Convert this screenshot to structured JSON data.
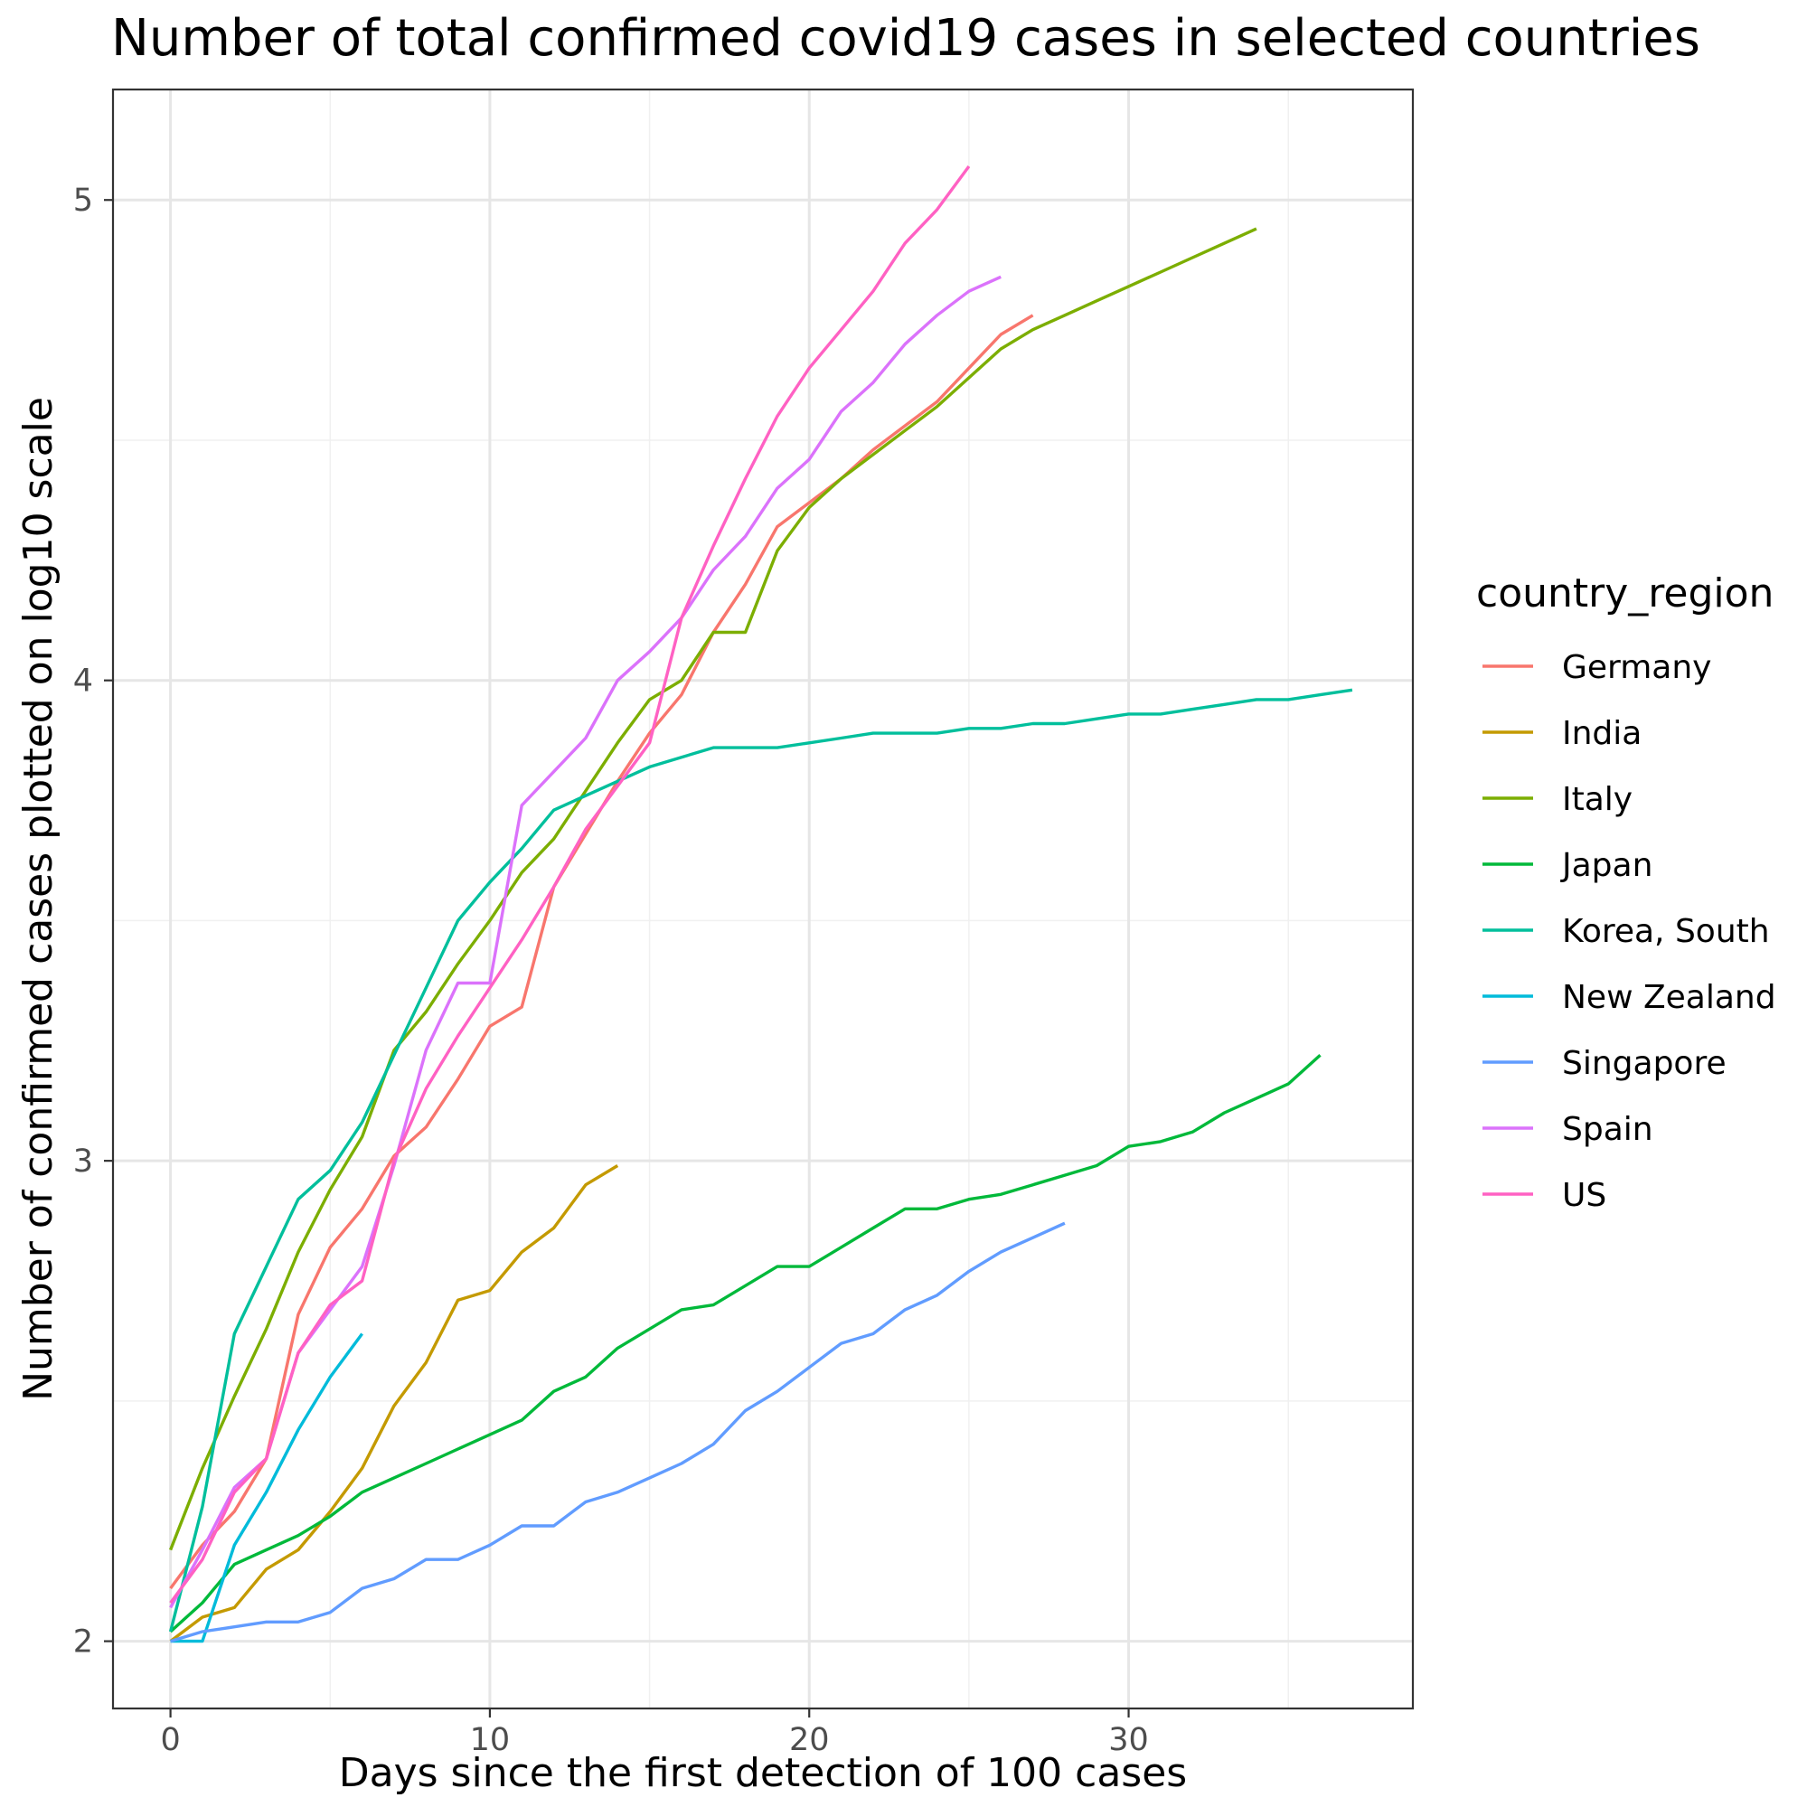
{
  "chart_data": {
    "type": "line",
    "title": "Number of total confirmed covid19 cases in selected countries",
    "xlabel": "Days since the first detection of 100 cases",
    "ylabel": "Number of confirmed cases plotted on log10 scale",
    "xlim": [
      -1.8,
      38.9
    ],
    "ylim": [
      1.86,
      5.23
    ],
    "x_ticks": [
      0,
      10,
      20,
      30
    ],
    "x_tick_labels": [
      "0",
      "10",
      "20",
      "30"
    ],
    "x_minor_ticks": [
      5,
      15,
      25,
      35
    ],
    "y_ticks": [
      2,
      3,
      4,
      5
    ],
    "y_tick_labels": [
      "2",
      "3",
      "4",
      "5"
    ],
    "y_minor_ticks": [
      2.5,
      3.5,
      4.5
    ],
    "grid": true,
    "legend": {
      "title": "country_region",
      "position": "right"
    },
    "series": [
      {
        "name": "Germany",
        "color": "#F8766D",
        "values": [
          2.11,
          2.2,
          2.27,
          2.38,
          2.68,
          2.82,
          2.9,
          3.01,
          3.07,
          3.17,
          3.28,
          3.32,
          3.57,
          3.68,
          3.79,
          3.89,
          3.97,
          4.1,
          4.2,
          4.32,
          4.37,
          4.42,
          4.48,
          4.53,
          4.58,
          4.65,
          4.72,
          4.76
        ]
      },
      {
        "name": "India",
        "color": "#C49A00",
        "values": [
          2.0,
          2.05,
          2.07,
          2.15,
          2.19,
          2.27,
          2.36,
          2.49,
          2.58,
          2.71,
          2.73,
          2.81,
          2.86,
          2.95,
          2.99
        ]
      },
      {
        "name": "Italy",
        "color": "#7CAE00",
        "values": [
          2.19,
          2.36,
          2.51,
          2.65,
          2.81,
          2.94,
          3.05,
          3.23,
          3.31,
          3.41,
          3.5,
          3.6,
          3.67,
          3.77,
          3.87,
          3.96,
          4.0,
          4.1,
          4.1,
          4.27,
          4.36,
          4.42,
          4.47,
          4.52,
          4.57,
          4.63,
          4.69,
          4.73,
          4.76,
          4.79,
          4.82,
          4.85,
          4.88,
          4.91,
          4.94
        ]
      },
      {
        "name": "Japan",
        "color": "#00B93A",
        "values": [
          2.02,
          2.08,
          2.16,
          2.19,
          2.22,
          2.26,
          2.31,
          2.34,
          2.37,
          2.4,
          2.43,
          2.46,
          2.52,
          2.55,
          2.61,
          2.65,
          2.69,
          2.7,
          2.74,
          2.78,
          2.78,
          2.82,
          2.86,
          2.9,
          2.9,
          2.92,
          2.93,
          2.95,
          2.97,
          2.99,
          3.03,
          3.04,
          3.06,
          3.1,
          3.13,
          3.16,
          3.22
        ]
      },
      {
        "name": "Korea, South",
        "color": "#00BF9C",
        "values": [
          2.02,
          2.28,
          2.64,
          2.78,
          2.92,
          2.98,
          3.08,
          3.22,
          3.36,
          3.5,
          3.58,
          3.65,
          3.73,
          3.76,
          3.79,
          3.82,
          3.84,
          3.86,
          3.86,
          3.86,
          3.87,
          3.88,
          3.89,
          3.89,
          3.89,
          3.9,
          3.9,
          3.91,
          3.91,
          3.92,
          3.93,
          3.93,
          3.94,
          3.95,
          3.96,
          3.96,
          3.97,
          3.98
        ]
      },
      {
        "name": "New Zealand",
        "color": "#00BBDA",
        "values": [
          2.0,
          2.0,
          2.2,
          2.31,
          2.44,
          2.55,
          2.64
        ]
      },
      {
        "name": "Singapore",
        "color": "#619CFF",
        "values": [
          2.0,
          2.02,
          2.03,
          2.04,
          2.04,
          2.06,
          2.11,
          2.13,
          2.17,
          2.17,
          2.2,
          2.24,
          2.24,
          2.29,
          2.31,
          2.34,
          2.37,
          2.41,
          2.48,
          2.52,
          2.57,
          2.62,
          2.64,
          2.69,
          2.72,
          2.77,
          2.81,
          2.84,
          2.87
        ]
      },
      {
        "name": "Spain",
        "color": "#DB72FB",
        "values": [
          2.07,
          2.19,
          2.32,
          2.38,
          2.6,
          2.69,
          2.78,
          2.99,
          3.23,
          3.37,
          3.37,
          3.74,
          3.81,
          3.88,
          4.0,
          4.06,
          4.13,
          4.23,
          4.3,
          4.4,
          4.46,
          4.56,
          4.62,
          4.7,
          4.76,
          4.81,
          4.84
        ]
      },
      {
        "name": "US",
        "color": "#FF61C3",
        "values": [
          2.08,
          2.17,
          2.31,
          2.38,
          2.6,
          2.7,
          2.75,
          3.0,
          3.15,
          3.26,
          3.36,
          3.46,
          3.57,
          3.69,
          3.78,
          3.87,
          4.13,
          4.28,
          4.42,
          4.55,
          4.65,
          4.73,
          4.81,
          4.91,
          4.98,
          5.07
        ]
      }
    ]
  }
}
